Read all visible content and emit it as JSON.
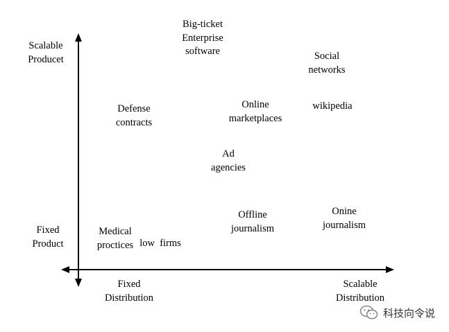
{
  "axes": {
    "y_top_label": [
      "Scalable",
      "Producet"
    ],
    "y_bottom_label": [
      "Fixed",
      "Product"
    ],
    "x_left_label": [
      "Fixed",
      "Distribution"
    ],
    "x_right_label": [
      "Scalable",
      "Distribution"
    ]
  },
  "items": [
    {
      "id": "big-ticket-enterprise-software",
      "lines": [
        "Big-ticket",
        "Enterprise",
        "software"
      ]
    },
    {
      "id": "social-networks",
      "lines": [
        "Social",
        "networks"
      ]
    },
    {
      "id": "defense-contracts",
      "lines": [
        "Defense",
        "contracts"
      ]
    },
    {
      "id": "online-marketplaces",
      "lines": [
        "Online",
        "marketplaces"
      ]
    },
    {
      "id": "wikipedia",
      "lines": [
        "wikipedia"
      ]
    },
    {
      "id": "ad-agencies",
      "lines": [
        "Ad",
        "agencies"
      ]
    },
    {
      "id": "low-firms",
      "lines": [
        "low  firms"
      ]
    },
    {
      "id": "offline-journalism",
      "lines": [
        "Offline",
        "journalism"
      ]
    },
    {
      "id": "onine-journalism",
      "lines": [
        "Onine",
        "journalism"
      ]
    },
    {
      "id": "medical-proctices",
      "lines": [
        "Medical",
        "proctices"
      ]
    }
  ],
  "watermark": {
    "text": "科技向令说",
    "icon": "wechat-icon",
    "color": "#333333"
  }
}
